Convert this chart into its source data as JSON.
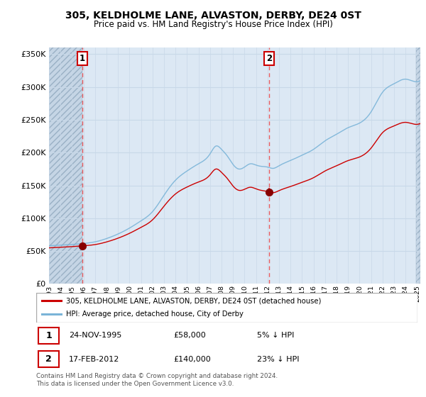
{
  "title": "305, KELDHOLME LANE, ALVASTON, DERBY, DE24 0ST",
  "subtitle": "Price paid vs. HM Land Registry's House Price Index (HPI)",
  "legend_line1": "305, KELDHOLME LANE, ALVASTON, DERBY, DE24 0ST (detached house)",
  "legend_line2": "HPI: Average price, detached house, City of Derby",
  "annotation1_date": "24-NOV-1995",
  "annotation1_price": "£58,000",
  "annotation1_hpi": "5% ↓ HPI",
  "annotation2_date": "17-FEB-2012",
  "annotation2_price": "£140,000",
  "annotation2_hpi": "23% ↓ HPI",
  "footer": "Contains HM Land Registry data © Crown copyright and database right 2024.\nThis data is licensed under the Open Government Licence v3.0.",
  "hpi_color": "#7ab4d8",
  "price_color": "#cc0000",
  "point_color": "#880000",
  "vline_color": "#ee4444",
  "bg_color": "#dce8f4",
  "grid_color": "#c8d8e8",
  "ylim": [
    0,
    360000
  ],
  "xlim_start": 1993.0,
  "xlim_end": 2025.3,
  "sale1_year": 1995.9,
  "sale1_price": 58000,
  "sale2_year": 2012.12,
  "sale2_price": 140000,
  "yticks": [
    0,
    50000,
    100000,
    150000,
    200000,
    250000,
    300000,
    350000
  ]
}
